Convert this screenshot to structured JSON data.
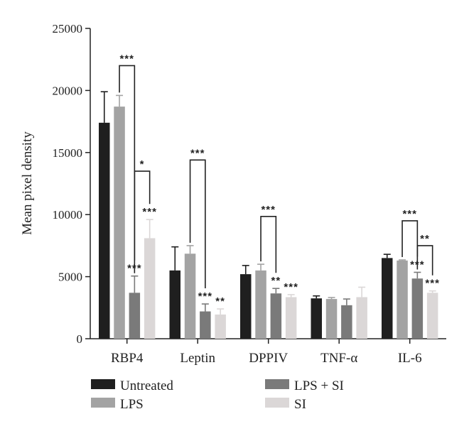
{
  "chart_data": {
    "type": "bar",
    "ylabel": "Mean pixel density",
    "ylim": [
      0,
      25000
    ],
    "yticks": [
      0,
      5000,
      10000,
      15000,
      20000,
      25000
    ],
    "categories": [
      "RBP4",
      "Leptin",
      "DPPIV",
      "TNF-α",
      "IL-6"
    ],
    "series": [
      {
        "name": "Untreated",
        "color": "#1f1f1f",
        "values": [
          17400,
          5500,
          5200,
          3250,
          6500
        ],
        "errors": [
          2500,
          1900,
          700,
          200,
          300
        ]
      },
      {
        "name": "LPS",
        "color": "#a3a3a3",
        "values": [
          18700,
          6850,
          5500,
          3200,
          6300
        ],
        "errors": [
          900,
          650,
          500,
          120,
          50
        ]
      },
      {
        "name": "LPS + SI",
        "color": "#7a7a7a",
        "values": [
          3700,
          2200,
          3650,
          2700,
          4850
        ],
        "errors": [
          1350,
          600,
          400,
          500,
          500
        ]
      },
      {
        "name": "SI",
        "color": "#dbd7d7",
        "values": [
          8100,
          1950,
          3350,
          3350,
          3700
        ],
        "errors": [
          1500,
          450,
          200,
          800,
          150
        ]
      }
    ],
    "significance": [
      {
        "category": 0,
        "series": 2,
        "label": "***"
      },
      {
        "category": 0,
        "series": 3,
        "label": "***"
      },
      {
        "category": 1,
        "series": 2,
        "label": "***"
      },
      {
        "category": 1,
        "series": 3,
        "label": "**"
      },
      {
        "category": 2,
        "series": 2,
        "label": "**"
      },
      {
        "category": 2,
        "series": 3,
        "label": "***"
      },
      {
        "category": 4,
        "series": 2,
        "label": "***"
      },
      {
        "category": 4,
        "series": 3,
        "label": "***"
      }
    ],
    "brackets": [
      {
        "category": 0,
        "from": 1,
        "to": 2,
        "level": 22000,
        "label": "***"
      },
      {
        "category": 0,
        "from": 2,
        "to": 3,
        "level": 13500,
        "label": "*"
      },
      {
        "category": 1,
        "from": 1,
        "to": 2,
        "level": 14400,
        "label": "***"
      },
      {
        "category": 2,
        "from": 1,
        "to": 2,
        "level": 9850,
        "label": "***"
      },
      {
        "category": 4,
        "from": 1,
        "to": 2,
        "level": 9500,
        "label": "***"
      },
      {
        "category": 4,
        "from": 2,
        "to": 3,
        "level": 7500,
        "label": "**"
      }
    ],
    "legend": {
      "placement": "bottom",
      "items": [
        "Untreated",
        "LPS",
        "LPS + SI",
        "SI"
      ]
    }
  }
}
